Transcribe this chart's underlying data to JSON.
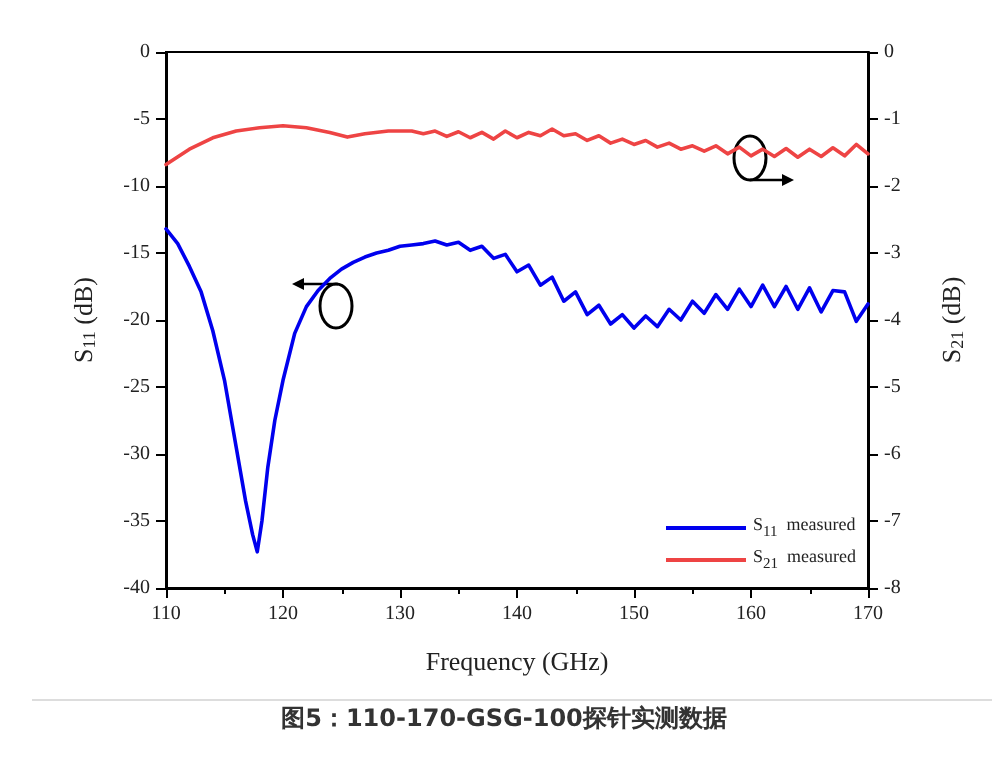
{
  "chart_data": {
    "type": "line",
    "xlabel": "Frequency (GHz)",
    "ylabel": "S$_{11}$ (dB)",
    "y2label": "S$_{21}$ (dB)",
    "annotations": [
      "图5：110-170-GSG-100探针实测数据"
    ],
    "xlim": [
      110,
      170
    ],
    "xticks": [
      110,
      120,
      130,
      140,
      150,
      160,
      170
    ],
    "ylim": [
      -40,
      0
    ],
    "yticks": [
      -40,
      -35,
      -30,
      -25,
      -20,
      -15,
      -10,
      -5,
      0
    ],
    "y2lim": [
      -8,
      0
    ],
    "y2ticks": [
      -8,
      -7,
      -6,
      -5,
      -4,
      -3,
      -2,
      -1,
      0
    ],
    "grid": false,
    "legend": "bottom right",
    "marker": "none",
    "line_style": "solid",
    "series": [
      {
        "name": "S$_{11}$  measured",
        "color": "#0000ee",
        "x": [
          110,
          111,
          112,
          113,
          114,
          115,
          116,
          116.8,
          117.4,
          117.8,
          118.2,
          118.7,
          119.3,
          120,
          121,
          122,
          123,
          124,
          125,
          126,
          127,
          128,
          129,
          130,
          131,
          132,
          133,
          134,
          135,
          136,
          137,
          138,
          139,
          140,
          141,
          142,
          143,
          144,
          145,
          146,
          147,
          148,
          149,
          150,
          151,
          152,
          153,
          154,
          155,
          156,
          157,
          158,
          159,
          160,
          161,
          162,
          163,
          164,
          165,
          166,
          167,
          168,
          169,
          170
        ],
        "values": [
          -13.2,
          -14.3,
          -16.0,
          -17.9,
          -20.8,
          -24.5,
          -29.5,
          -33.5,
          -36.0,
          -37.3,
          -35.0,
          -31.0,
          -27.5,
          -24.5,
          -21.0,
          -19.0,
          -17.8,
          -16.9,
          -16.2,
          -15.7,
          -15.3,
          -15.0,
          -14.8,
          -14.5,
          -14.4,
          -14.3,
          -14.1,
          -14.4,
          -14.2,
          -14.8,
          -14.5,
          -15.4,
          -15.1,
          -16.4,
          -15.9,
          -17.4,
          -16.8,
          -18.6,
          -17.9,
          -19.6,
          -18.9,
          -20.3,
          -19.6,
          -20.6,
          -19.7,
          -20.5,
          -19.2,
          -20.0,
          -18.6,
          -19.5,
          -18.1,
          -19.2,
          -17.7,
          -19.0,
          -17.4,
          -19.0,
          -17.5,
          -19.2,
          -17.6,
          -19.4,
          -17.8,
          -17.9,
          -20.1,
          -18.8
        ]
      },
      {
        "name": "S$_{21}$  measured",
        "color": "#ee4444",
        "axis": "y2",
        "x": [
          110,
          112,
          114,
          116,
          118,
          120,
          122,
          124,
          125.5,
          127,
          129,
          131,
          132,
          133,
          134,
          135,
          136,
          137,
          138,
          139,
          140,
          141,
          142,
          143,
          144,
          145,
          146,
          147,
          148,
          149,
          150,
          151,
          152,
          153,
          154,
          155,
          156,
          157,
          158,
          159,
          160,
          161,
          162,
          163,
          164,
          165,
          166,
          167,
          168,
          169,
          170
        ],
        "values": [
          -1.68,
          -1.45,
          -1.28,
          -1.18,
          -1.13,
          -1.1,
          -1.13,
          -1.2,
          -1.27,
          -1.22,
          -1.18,
          -1.18,
          -1.22,
          -1.18,
          -1.26,
          -1.19,
          -1.28,
          -1.2,
          -1.3,
          -1.18,
          -1.28,
          -1.2,
          -1.25,
          -1.15,
          -1.25,
          -1.22,
          -1.32,
          -1.25,
          -1.36,
          -1.3,
          -1.38,
          -1.32,
          -1.42,
          -1.36,
          -1.45,
          -1.4,
          -1.48,
          -1.4,
          -1.52,
          -1.42,
          -1.55,
          -1.45,
          -1.56,
          -1.44,
          -1.57,
          -1.45,
          -1.56,
          -1.43,
          -1.55,
          -1.38,
          -1.52
        ]
      }
    ]
  }
}
